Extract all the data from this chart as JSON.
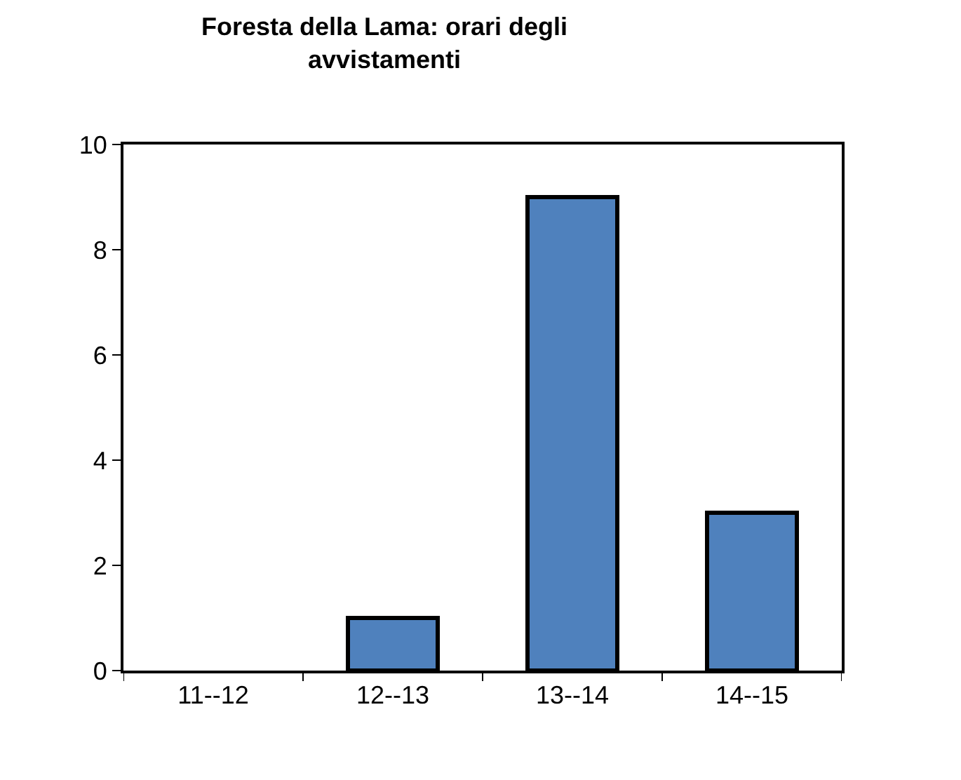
{
  "chart_data": {
    "type": "bar",
    "title": "Foresta della Lama: orari degli avvistamenti",
    "categories": [
      "11--12",
      "12--13",
      "13--14",
      "14--15"
    ],
    "values": [
      0,
      1,
      9,
      3
    ],
    "color": "#4f81bd",
    "ylim": [
      0,
      10
    ],
    "yticks": [
      0,
      2,
      4,
      6,
      8,
      10
    ]
  }
}
